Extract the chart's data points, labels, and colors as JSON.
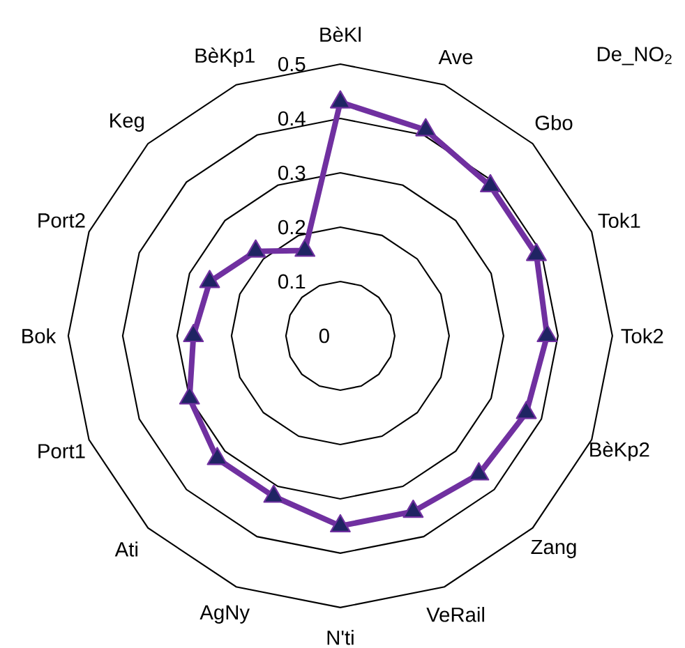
{
  "chart_data": {
    "type": "radar",
    "title": "De_NO$_{2}$",
    "categories": [
      "BèKl",
      "Ave",
      "Gbo",
      "Tok1",
      "Tok2",
      "BèKp2",
      "Zang",
      "VeRail",
      "N'ti",
      "AgNy",
      "Ati",
      "Port1",
      "Bok",
      "Port2",
      "Keg",
      "BèKp1"
    ],
    "series": [
      {
        "color": "#7030a0",
        "values": [
          0.43,
          0.41,
          0.39,
          0.39,
          0.38,
          0.37,
          0.36,
          0.35,
          0.35,
          0.32,
          0.32,
          0.3,
          0.27,
          0.26,
          0.22,
          0.17
        ]
      }
    ],
    "ylim": [
      0,
      0.5
    ],
    "yticks": [
      {
        "value": 0,
        "label": "0"
      },
      0.1,
      0.2,
      0.3,
      0.4,
      0.5
    ],
    "grid": true,
    "marker": "triangle"
  }
}
